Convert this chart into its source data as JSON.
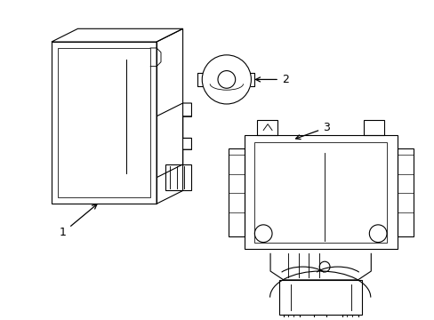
{
  "background_color": "#ffffff",
  "line_color": "#000000",
  "label_color": "#000000",
  "lw": 0.8,
  "fig_w": 4.89,
  "fig_h": 3.6,
  "dpi": 100
}
